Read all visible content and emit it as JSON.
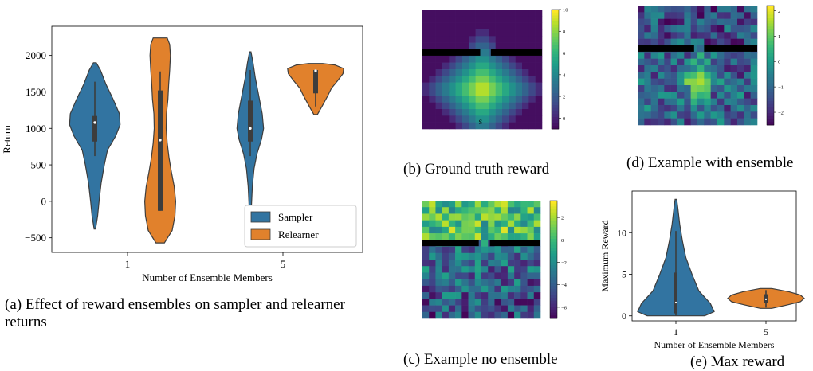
{
  "captions": {
    "a": "(a) Effect of reward ensembles on sampler and relearner returns",
    "b": "(b) Ground truth reward",
    "c": "(c) Example no ensemble",
    "d": "(d) Example with ensemble",
    "e": "(e) Max reward"
  },
  "colors": {
    "sampler": "#3274a1",
    "relearner": "#e1812c",
    "wall": "#000000"
  },
  "chart_data": [
    {
      "id": "a",
      "type": "violin",
      "title": "",
      "xlabel": "Number of Ensemble Members",
      "ylabel": "Return",
      "categories": [
        "1",
        "5"
      ],
      "ylim": [
        -700,
        2400
      ],
      "yticks": [
        -500,
        0,
        500,
        1000,
        1500,
        2000
      ],
      "ytick_labels": [
        "−500",
        "0",
        "500",
        "1000",
        "1500",
        "2000"
      ],
      "legend": {
        "position": "bottom-right",
        "entries": [
          "Sampler",
          "Relearner"
        ]
      },
      "series": [
        {
          "name": "Sampler",
          "violins": [
            {
              "category": "1",
              "min": -380,
              "max": 1900,
              "q1": 820,
              "median": 1080,
              "q3": 1170,
              "whisker_low": 620,
              "whisker_high": 1640,
              "profile": [
                [
                  -380,
                  0.02
                ],
                [
                  -200,
                  0.08
                ],
                [
                  0,
                  0.12
                ],
                [
                  250,
                  0.18
                ],
                [
                  500,
                  0.27
                ],
                [
                  700,
                  0.36
                ],
                [
                  900,
                  0.6
                ],
                [
                  1050,
                  0.72
                ],
                [
                  1200,
                  0.7
                ],
                [
                  1400,
                  0.52
                ],
                [
                  1600,
                  0.32
                ],
                [
                  1800,
                  0.16
                ],
                [
                  1900,
                  0.04
                ]
              ]
            },
            {
              "category": "5",
              "min": -380,
              "max": 2050,
              "q1": 820,
              "median": 1000,
              "q3": 1380,
              "whisker_low": 620,
              "whisker_high": 1800,
              "profile": [
                [
                  -380,
                  0.01
                ],
                [
                  -100,
                  0.03
                ],
                [
                  200,
                  0.06
                ],
                [
                  450,
                  0.11
                ],
                [
                  650,
                  0.19
                ],
                [
                  850,
                  0.32
                ],
                [
                  1000,
                  0.38
                ],
                [
                  1200,
                  0.34
                ],
                [
                  1450,
                  0.24
                ],
                [
                  1700,
                  0.14
                ],
                [
                  1900,
                  0.08
                ],
                [
                  2050,
                  0.02
                ]
              ]
            }
          ]
        },
        {
          "name": "Relearner",
          "violins": [
            {
              "category": "1",
              "min": -570,
              "max": 2240,
              "q1": -130,
              "median": 840,
              "q3": 1520,
              "whisker_low": -130,
              "whisker_high": 1780,
              "profile": [
                [
                  -570,
                  0.12
                ],
                [
                  -400,
                  0.34
                ],
                [
                  -200,
                  0.42
                ],
                [
                  0,
                  0.44
                ],
                [
                  200,
                  0.4
                ],
                [
                  400,
                  0.32
                ],
                [
                  600,
                  0.25
                ],
                [
                  800,
                  0.2
                ],
                [
                  1000,
                  0.17
                ],
                [
                  1200,
                  0.18
                ],
                [
                  1400,
                  0.22
                ],
                [
                  1600,
                  0.24
                ],
                [
                  1800,
                  0.27
                ],
                [
                  2000,
                  0.29
                ],
                [
                  2150,
                  0.27
                ],
                [
                  2240,
                  0.2
                ]
              ]
            },
            {
              "category": "5",
              "min": 1190,
              "max": 1890,
              "q1": 1480,
              "median": 1790,
              "q3": 1800,
              "whisker_low": 1300,
              "whisker_high": 1810,
              "profile": [
                [
                  1190,
                  0.05
                ],
                [
                  1300,
                  0.18
                ],
                [
                  1450,
                  0.35
                ],
                [
                  1550,
                  0.45
                ],
                [
                  1650,
                  0.62
                ],
                [
                  1750,
                  0.78
                ],
                [
                  1820,
                  0.8
                ],
                [
                  1870,
                  0.55
                ],
                [
                  1890,
                  0.2
                ]
              ]
            }
          ]
        }
      ]
    },
    {
      "id": "b",
      "type": "heatmap",
      "title": "",
      "colorbar_ticks": [
        0,
        2,
        4,
        6,
        8,
        10
      ],
      "vmin": -1,
      "vmax": 10,
      "marker_label": "S",
      "grid": 18
    },
    {
      "id": "c",
      "type": "heatmap",
      "title": "",
      "colorbar_ticks": [
        -6,
        -4,
        -2,
        0,
        2
      ],
      "colorbar_tick_labels": [
        "−6",
        "−4",
        "−2",
        "0",
        "2"
      ],
      "vmin": -7,
      "vmax": 3.5,
      "grid": 18
    },
    {
      "id": "d",
      "type": "heatmap",
      "title": "",
      "colorbar_ticks": [
        -2,
        -1,
        0,
        1,
        2
      ],
      "colorbar_tick_labels": [
        "−2",
        "−1",
        "0",
        "1",
        "2"
      ],
      "vmin": -2.5,
      "vmax": 2.2,
      "grid": 18
    },
    {
      "id": "e",
      "type": "violin",
      "title": "",
      "xlabel": "Number of Ensemble Members",
      "ylabel": "Maximum Reward",
      "categories": [
        "1",
        "5"
      ],
      "ylim": [
        -0.6,
        15
      ],
      "yticks": [
        0,
        5,
        10
      ],
      "ytick_labels": [
        "0",
        "5",
        "10"
      ],
      "series": [
        {
          "name": "",
          "violins": [
            {
              "category": "1",
              "color": "#3274a1",
              "min": 0,
              "max": 14,
              "q1": 0.3,
              "median": 1.6,
              "q3": 5.2,
              "whisker_low": 0,
              "whisker_high": 10.2,
              "profile": [
                [
                  0,
                  0.75
                ],
                [
                  0.5,
                  1.0
                ],
                [
                  1.5,
                  0.9
                ],
                [
                  3,
                  0.6
                ],
                [
                  5,
                  0.42
                ],
                [
                  7,
                  0.26
                ],
                [
                  9,
                  0.17
                ],
                [
                  11,
                  0.1
                ],
                [
                  13,
                  0.05
                ],
                [
                  14,
                  0.02
                ]
              ]
            },
            {
              "category": "5",
              "color": "#e1812c",
              "min": 0.9,
              "max": 3.3,
              "q1": 1.6,
              "median": 2.0,
              "q3": 2.6,
              "whisker_low": 1.0,
              "whisker_high": 3.1,
              "profile": [
                [
                  0.9,
                  0.15
                ],
                [
                  1.3,
                  0.55
                ],
                [
                  1.7,
                  0.9
                ],
                [
                  2.1,
                  1.0
                ],
                [
                  2.5,
                  0.9
                ],
                [
                  2.9,
                  0.6
                ],
                [
                  3.3,
                  0.15
                ]
              ]
            }
          ]
        }
      ]
    }
  ]
}
